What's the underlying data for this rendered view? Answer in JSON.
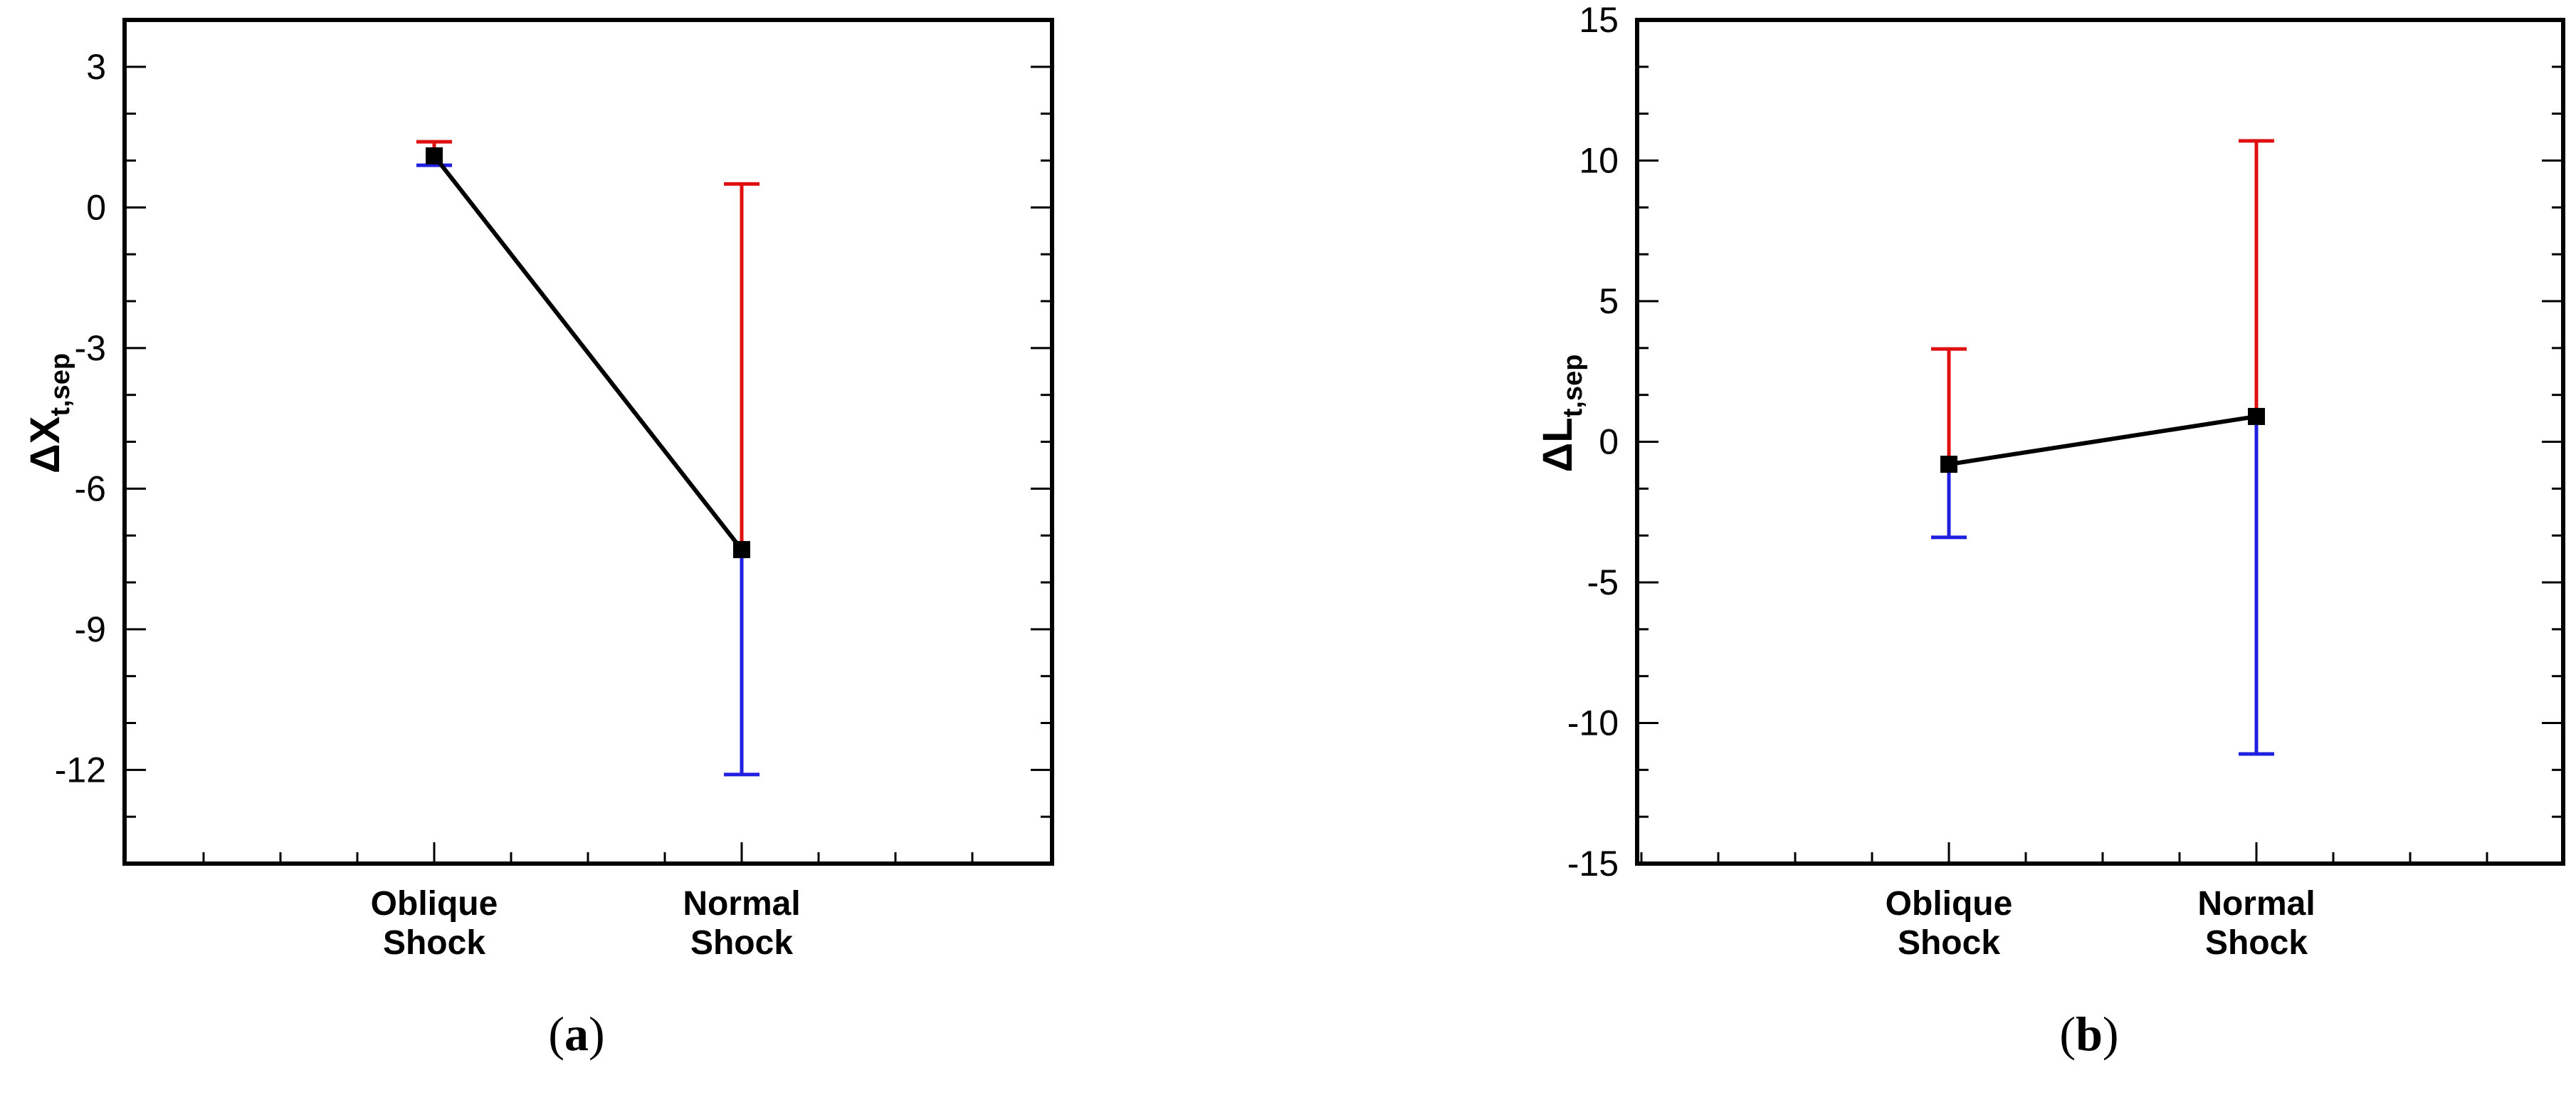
{
  "chart_data": [
    {
      "panel": "(a)",
      "type": "errorbar-line",
      "ylabel": "ΔX",
      "ylabel_sub": "t,sep",
      "categories": [
        "Oblique Shock",
        "Normal Shock"
      ],
      "categories_lines": [
        [
          "Oblique",
          "Shock"
        ],
        [
          "Normal",
          "Shock"
        ]
      ],
      "values": [
        1.1,
        -7.3
      ],
      "upper": [
        1.4,
        0.5
      ],
      "lower": [
        0.9,
        -12.1
      ],
      "ylim": [
        -14,
        4
      ],
      "yticks": [
        3,
        0,
        -3,
        -6,
        -9,
        -12
      ],
      "ytick_labels": [
        "3",
        "0",
        "-3",
        "-6",
        "-9",
        "-12"
      ],
      "colors": {
        "line": "#000000",
        "upper": "#e01010",
        "lower": "#2020e0"
      }
    },
    {
      "panel": "(b)",
      "type": "errorbar-line",
      "ylabel": "ΔL",
      "ylabel_sub": "t,sep",
      "categories": [
        "Oblique Shock",
        "Normal Shock"
      ],
      "categories_lines": [
        [
          "Oblique",
          "Shock"
        ],
        [
          "Normal",
          "Shock"
        ]
      ],
      "values": [
        -0.8,
        0.9
      ],
      "upper": [
        3.3,
        10.7
      ],
      "lower": [
        -3.4,
        -11.1
      ],
      "ylim": [
        -15,
        15
      ],
      "yticks": [
        15,
        10,
        5,
        0,
        -5,
        -10,
        -15
      ],
      "ytick_labels": [
        "15",
        "10",
        "5",
        "0",
        "-5",
        "-10",
        "-15"
      ],
      "colors": {
        "line": "#000000",
        "upper": "#e01010",
        "lower": "#2020e0"
      }
    }
  ]
}
